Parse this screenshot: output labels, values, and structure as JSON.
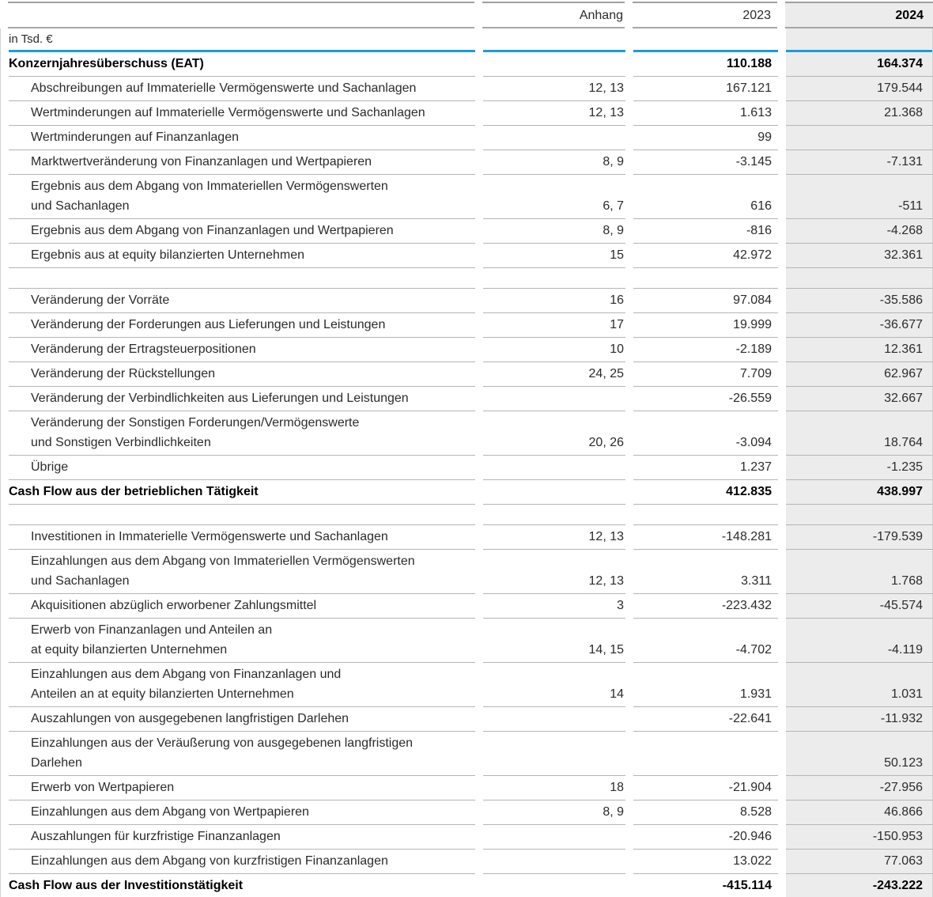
{
  "page": {
    "unit_label": "in Tsd. €"
  },
  "columns": {
    "anhang": "Anhang",
    "year_prev": "2023",
    "year_curr": "2024"
  },
  "colors": {
    "accent_blue": "#1A9DDB",
    "current_year_column_bg": "#ECECEC"
  },
  "rows": [
    {
      "type": "total",
      "label": "Konzernjahresüberschuss (EAT)",
      "anhang": "",
      "v2023": "110.188",
      "v2024": "164.374"
    },
    {
      "type": "item",
      "label": "Abschreibungen auf Immaterielle Vermögenswerte und Sachanlagen",
      "anhang": "12, 13",
      "v2023": "167.121",
      "v2024": "179.544"
    },
    {
      "type": "item",
      "label": "Wertminderungen auf Immaterielle Vermögenswerte und Sachanlagen",
      "anhang": "12, 13",
      "v2023": "1.613",
      "v2024": "21.368"
    },
    {
      "type": "item",
      "label": "Wertminderungen auf Finanzanlagen",
      "anhang": "",
      "v2023": "99",
      "v2024": ""
    },
    {
      "type": "item",
      "label": "Marktwertveränderung von Finanzanlagen und Wertpapieren",
      "anhang": "8, 9",
      "v2023": "-3.145",
      "v2024": "-7.131"
    },
    {
      "type": "item",
      "label": "Ergebnis aus dem Abgang von Immateriellen Vermögenswerten\nund Sachanlagen",
      "anhang": "6, 7",
      "v2023": "616",
      "v2024": "-511"
    },
    {
      "type": "item",
      "label": "Ergebnis aus dem Abgang von Finanzanlagen und Wertpapieren",
      "anhang": "8, 9",
      "v2023": "-816",
      "v2024": "-4.268"
    },
    {
      "type": "item",
      "label": "Ergebnis aus at equity bilanzierten Unternehmen",
      "anhang": "15",
      "v2023": "42.972",
      "v2024": "32.361"
    },
    {
      "type": "spacer",
      "label": "",
      "anhang": "",
      "v2023": "",
      "v2024": ""
    },
    {
      "type": "item",
      "label": "Veränderung der Vorräte",
      "anhang": "16",
      "v2023": "97.084",
      "v2024": "-35.586"
    },
    {
      "type": "item",
      "label": "Veränderung der Forderungen aus Lieferungen und Leistungen",
      "anhang": "17",
      "v2023": "19.999",
      "v2024": "-36.677"
    },
    {
      "type": "item",
      "label": "Veränderung der Ertragsteuerpositionen",
      "anhang": "10",
      "v2023": "-2.189",
      "v2024": "12.361"
    },
    {
      "type": "item",
      "label": "Veränderung der Rückstellungen",
      "anhang": "24, 25",
      "v2023": "7.709",
      "v2024": "62.967"
    },
    {
      "type": "item",
      "label": "Veränderung der Verbindlichkeiten aus Lieferungen und Leistungen",
      "anhang": "",
      "v2023": "-26.559",
      "v2024": "32.667"
    },
    {
      "type": "item",
      "label": "Veränderung der Sonstigen Forderungen/Vermögenswerte\nund Sonstigen Verbindlichkeiten",
      "anhang": "20, 26",
      "v2023": "-3.094",
      "v2024": "18.764"
    },
    {
      "type": "item",
      "label": "Übrige",
      "anhang": "",
      "v2023": "1.237",
      "v2024": "-1.235"
    },
    {
      "type": "total",
      "label": "Cash Flow aus der betrieblichen Tätigkeit",
      "anhang": "",
      "v2023": "412.835",
      "v2024": "438.997"
    },
    {
      "type": "spacer",
      "label": "",
      "anhang": "",
      "v2023": "",
      "v2024": ""
    },
    {
      "type": "item",
      "label": "Investitionen in Immaterielle Vermögenswerte und Sachanlagen",
      "anhang": "12, 13",
      "v2023": "-148.281",
      "v2024": "-179.539"
    },
    {
      "type": "item",
      "label": "Einzahlungen aus dem Abgang von Immateriellen Vermögenswerten\nund Sachanlagen",
      "anhang": "12, 13",
      "v2023": "3.311",
      "v2024": "1.768"
    },
    {
      "type": "item",
      "label": "Akquisitionen abzüglich erworbener Zahlungsmittel",
      "anhang": "3",
      "v2023": "-223.432",
      "v2024": "-45.574"
    },
    {
      "type": "item",
      "label": "Erwerb von Finanzanlagen und Anteilen an\nat equity bilanzierten Unternehmen",
      "anhang": "14, 15",
      "v2023": "-4.702",
      "v2024": "-4.119"
    },
    {
      "type": "item",
      "label": "Einzahlungen aus dem Abgang von Finanzanlagen und\nAnteilen an at equity bilanzierten Unternehmen",
      "anhang": "14",
      "v2023": "1.931",
      "v2024": "1.031"
    },
    {
      "type": "item",
      "label": "Auszahlungen von ausgegebenen langfristigen Darlehen",
      "anhang": "",
      "v2023": "-22.641",
      "v2024": "-11.932"
    },
    {
      "type": "item",
      "label": "Einzahlungen aus der Veräußerung von ausgegebenen langfristigen\nDarlehen",
      "anhang": "",
      "v2023": "",
      "v2024": "50.123"
    },
    {
      "type": "item",
      "label": "Erwerb von Wertpapieren",
      "anhang": "18",
      "v2023": "-21.904",
      "v2024": "-27.956"
    },
    {
      "type": "item",
      "label": "Einzahlungen aus dem Abgang von Wertpapieren",
      "anhang": "8, 9",
      "v2023": "8.528",
      "v2024": "46.866"
    },
    {
      "type": "item",
      "label": "Auszahlungen für kurzfristige Finanzanlagen",
      "anhang": "",
      "v2023": "-20.946",
      "v2024": "-150.953"
    },
    {
      "type": "item",
      "label": "Einzahlungen aus dem Abgang von kurzfristigen Finanzanlagen",
      "anhang": "",
      "v2023": "13.022",
      "v2024": "77.063"
    },
    {
      "type": "total last",
      "label": "Cash Flow aus der Investitionstätigkeit",
      "anhang": "",
      "v2023": "-415.114",
      "v2024": "-243.222"
    }
  ]
}
